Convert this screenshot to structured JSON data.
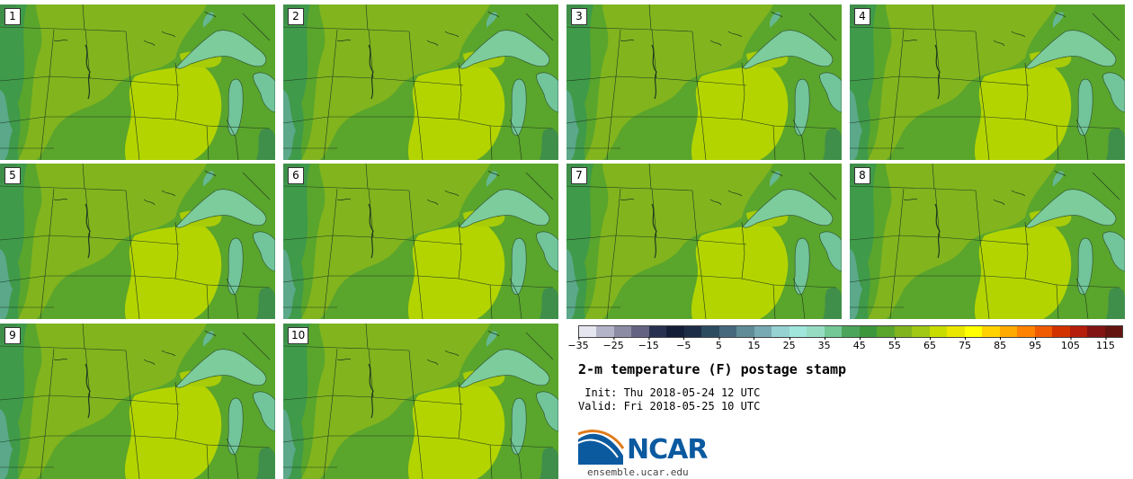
{
  "panels": [
    {
      "label": "1"
    },
    {
      "label": "2"
    },
    {
      "label": "3"
    },
    {
      "label": "4"
    },
    {
      "label": "5"
    },
    {
      "label": "6"
    },
    {
      "label": "7"
    },
    {
      "label": "8"
    },
    {
      "label": "9"
    },
    {
      "label": "10"
    }
  ],
  "colorbar": {
    "colors": [
      "#e6e6f0",
      "#b4b4c8",
      "#8c8ca5",
      "#646482",
      "#283250",
      "#141e37",
      "#1e2d46",
      "#2d4b5f",
      "#46697d",
      "#5f8c96",
      "#78aab4",
      "#96d2d2",
      "#a0e6dc",
      "#96dcc3",
      "#73c896",
      "#4ba55a",
      "#3c963c",
      "#5aa52c",
      "#82b41e",
      "#a0c814",
      "#c8dc00",
      "#ebe600",
      "#ffff00",
      "#ffd200",
      "#ffaa00",
      "#ff8200",
      "#f05a00",
      "#d23200",
      "#b41e0a",
      "#821414",
      "#641410"
    ],
    "tick_labels": [
      "−35",
      "−25",
      "−15",
      "−5",
      "5",
      "15",
      "25",
      "35",
      "45",
      "55",
      "65",
      "75",
      "85",
      "95",
      "105",
      "115"
    ]
  },
  "title": "2-m temperature (F) postage stamp",
  "init": " Init: Thu 2018-05-24 12 UTC",
  "valid": "Valid: Fri 2018-05-25 10 UTC",
  "logo_text": "NCAR",
  "website": "ensemble.ucar.edu"
}
